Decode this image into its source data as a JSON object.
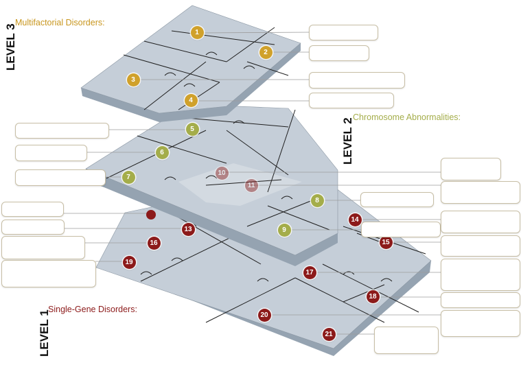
{
  "levels": {
    "level3": {
      "label": "LEVEL 3",
      "category": "Multifactorial Disorders:",
      "color": "#c8961e"
    },
    "level2": {
      "label": "LEVEL 2",
      "category": "Chromosome Abnormalities:",
      "color": "#a4ad4a"
    },
    "level1": {
      "label": "LEVEL 1",
      "category": "Single-Gene Disorders:",
      "color": "#8c1a1a"
    }
  },
  "markers": [
    {
      "n": "1",
      "tone": "gold"
    },
    {
      "n": "2",
      "tone": "gold"
    },
    {
      "n": "3",
      "tone": "gold"
    },
    {
      "n": "4",
      "tone": "gold"
    },
    {
      "n": "5",
      "tone": "olive"
    },
    {
      "n": "6",
      "tone": "olive"
    },
    {
      "n": "7",
      "tone": "olive"
    },
    {
      "n": "8",
      "tone": "olive"
    },
    {
      "n": "9",
      "tone": "olive"
    },
    {
      "n": "10",
      "tone": "faint"
    },
    {
      "n": "11",
      "tone": "faint"
    },
    {
      "n": "13",
      "tone": "red"
    },
    {
      "n": "14",
      "tone": "red"
    },
    {
      "n": "15",
      "tone": "red"
    },
    {
      "n": "16",
      "tone": "red"
    },
    {
      "n": "17",
      "tone": "red"
    },
    {
      "n": "18",
      "tone": "red"
    },
    {
      "n": "19",
      "tone": "red"
    },
    {
      "n": "20",
      "tone": "red"
    },
    {
      "n": "21",
      "tone": "red"
    }
  ],
  "answer_boxes": [
    {
      "for": "1",
      "value": ""
    },
    {
      "for": "2",
      "value": ""
    },
    {
      "for": "3",
      "value": ""
    },
    {
      "for": "4",
      "value": ""
    },
    {
      "for": "5",
      "value": ""
    },
    {
      "for": "6",
      "value": ""
    },
    {
      "for": "7",
      "value": ""
    },
    {
      "for": "8",
      "value": ""
    },
    {
      "for": "9",
      "value": ""
    },
    {
      "for": "10",
      "value": ""
    },
    {
      "for": "11",
      "value": ""
    },
    {
      "for": "12",
      "value": ""
    },
    {
      "for": "13",
      "value": ""
    },
    {
      "for": "14",
      "value": ""
    },
    {
      "for": "15",
      "value": ""
    },
    {
      "for": "16",
      "value": ""
    },
    {
      "for": "17",
      "value": ""
    },
    {
      "for": "18",
      "value": ""
    },
    {
      "for": "19",
      "value": ""
    },
    {
      "for": "20",
      "value": ""
    },
    {
      "for": "21",
      "value": ""
    }
  ]
}
